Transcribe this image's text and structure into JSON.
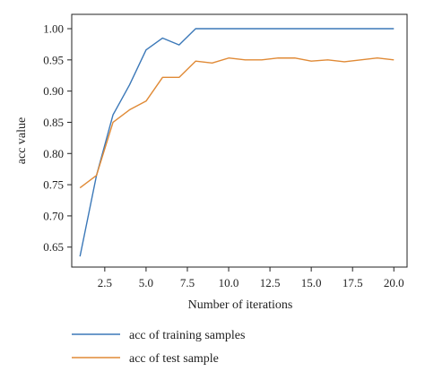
{
  "chart_data": {
    "type": "line",
    "title": "",
    "xlabel": "Number of iterations",
    "ylabel": "acc value",
    "xlim": [
      0.5,
      20.8
    ],
    "ylim": [
      0.618,
      1.023
    ],
    "xticks": [
      2.5,
      5.0,
      7.5,
      10.0,
      12.5,
      15.0,
      17.5,
      20.0
    ],
    "xtick_labels": [
      "2.5",
      "5.0",
      "7.5",
      "10.0",
      "12.5",
      "15.0",
      "17.5",
      "20.0"
    ],
    "yticks": [
      0.65,
      0.7,
      0.75,
      0.8,
      0.85,
      0.9,
      0.95,
      1.0
    ],
    "ytick_labels": [
      "0.65",
      "0.70",
      "0.75",
      "0.80",
      "0.85",
      "0.90",
      "0.95",
      "1.00"
    ],
    "grid": false,
    "legend_position": "bottom",
    "x": [
      1,
      2,
      3,
      4,
      5,
      6,
      7,
      8,
      9,
      10,
      11,
      12,
      13,
      14,
      15,
      16,
      17,
      18,
      19,
      20
    ],
    "series": [
      {
        "name": "acc of training samples",
        "color": "#3b78b8",
        "values": [
          0.635,
          0.765,
          0.862,
          0.91,
          0.966,
          0.985,
          0.974,
          1.0,
          1.0,
          1.0,
          1.0,
          1.0,
          1.0,
          1.0,
          1.0,
          1.0,
          1.0,
          1.0,
          1.0,
          1.0
        ]
      },
      {
        "name": "acc of test sample",
        "color": "#e08a36",
        "values": [
          0.745,
          0.765,
          0.85,
          0.87,
          0.884,
          0.922,
          0.922,
          0.948,
          0.945,
          0.953,
          0.95,
          0.95,
          0.953,
          0.953,
          0.948,
          0.95,
          0.947,
          0.95,
          0.953,
          0.95
        ]
      }
    ]
  }
}
